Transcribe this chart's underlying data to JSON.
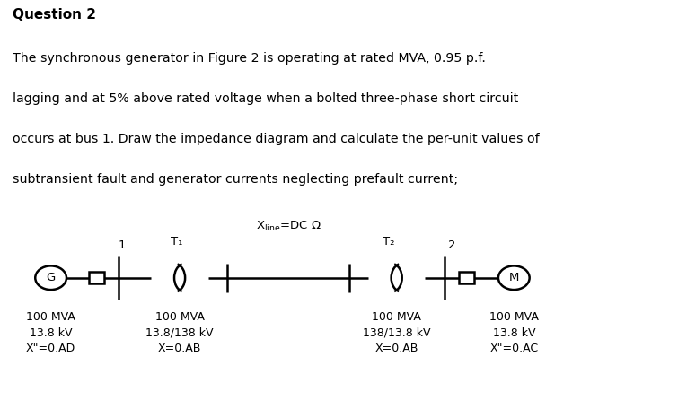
{
  "title": "Question 2",
  "para_line1": "The synchronous generator in Figure 2 is operating at rated MVA, 0.95 p.f.",
  "para_line2": "lagging and at 5% above rated voltage when a bolted three-phase short circuit",
  "para_line3": "occurs at bus 1. Draw the impedance diagram and calculate the per-unit values of",
  "para_line4": "subtransient fault and generator currents neglecting prefault current;",
  "xline_label": "Xₛᴵₙₑ=DC Ω",
  "T1_label": "T₁",
  "T2_label": "T₂",
  "bus1_label": "1",
  "bus2_label": "2",
  "G_label": "G",
  "M_label": "M",
  "comp1": {
    "mva": "100 MVA",
    "kv": "13.8 kV",
    "x": "X\"=0.AD"
  },
  "comp2": {
    "mva": "100 MVA",
    "kv": "13.8/138 kV",
    "x": "X=0.AB"
  },
  "comp3": {
    "mva": "100 MVA",
    "kv": "138/13.8 kV",
    "x": "X=0.AB"
  },
  "comp4": {
    "mva": "100 MVA",
    "kv": "13.8 kV",
    "x": "X\"=0.AC"
  },
  "bg_color": "#ffffff",
  "text_color": "#000000",
  "fig_width": 7.55,
  "fig_height": 4.46,
  "dpi": 100
}
